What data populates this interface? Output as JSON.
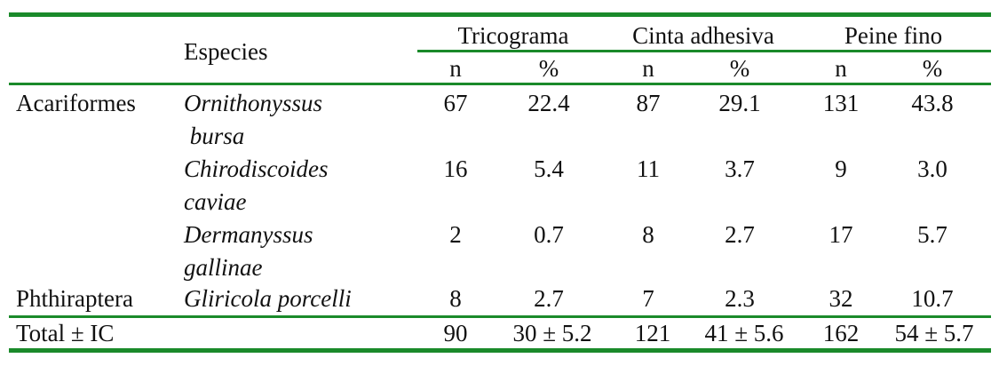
{
  "table": {
    "species_header": "Especies",
    "groups": [
      {
        "label": "Tricograma",
        "n": "n",
        "pct": "%"
      },
      {
        "label": "Cinta adhesiva",
        "n": "n",
        "pct": "%"
      },
      {
        "label": "Peine fino",
        "n": "n",
        "pct": "%"
      }
    ],
    "rows": [
      {
        "order": "Acariformes",
        "species": [
          "Ornithonyssus",
          " bursa"
        ],
        "values": [
          "67",
          "22.4",
          "87",
          "29.1",
          "131",
          "43.8"
        ]
      },
      {
        "order": "",
        "species": [
          "Chirodiscoides",
          "caviae"
        ],
        "values": [
          "16",
          "5.4",
          "11",
          "3.7",
          "9",
          "3.0"
        ]
      },
      {
        "order": "",
        "species": [
          "Dermanyssus",
          "gallinae"
        ],
        "values": [
          "2",
          "0.7",
          "8",
          "2.7",
          "17",
          "5.7"
        ]
      },
      {
        "order": "Phthiraptera",
        "species": [
          "Gliricola porcelli"
        ],
        "values": [
          "8",
          "2.7",
          "7",
          "2.3",
          "32",
          "10.7"
        ]
      }
    ],
    "total": {
      "label": "Total ± IC",
      "values": [
        "90",
        "30 ± 5.2",
        "121",
        "41 ± 5.6",
        "162",
        "54 ± 5.7"
      ]
    }
  },
  "colors": {
    "rule": "#1a8a2a"
  }
}
